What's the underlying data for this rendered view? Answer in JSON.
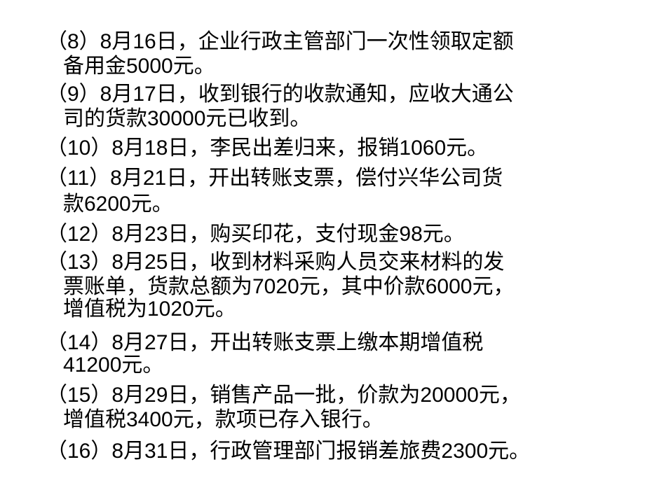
{
  "items": [
    {
      "lines": [
        "（8）8月16日，企业行政主管部门一次性领取定额",
        "备用金5000元。"
      ]
    },
    {
      "lines": [
        "（9）8月17日，收到银行的收款通知，应收大通公",
        "司的货款30000元已收到。"
      ]
    },
    {
      "lines": [
        "（10）8月18日，李民出差归来，报销1060元。"
      ]
    },
    {
      "lines": [
        "（11）8月21日，开出转账支票，偿付兴华公司货",
        "款6200元。"
      ]
    },
    {
      "lines": [
        "（12）8月23日，购买印花，支付现金98元。"
      ]
    },
    {
      "lines": [
        "（13）8月25日，收到材料采购人员交来材料的发",
        "票账单，货款总额为7020元，其中价款6000元，",
        "增值税为1020元。"
      ]
    },
    {
      "lines": [
        "（14）8月27日，开出转账支票上缴本期增值税",
        "41200元。"
      ]
    },
    {
      "lines": [
        "（15）8月29日，销售产品一批，价款为20000元，",
        "增值税3400元，款项已存入银行。"
      ]
    },
    {
      "lines": [
        "（16）8月31日，行政管理部门报销差旅费2300元。"
      ]
    }
  ]
}
